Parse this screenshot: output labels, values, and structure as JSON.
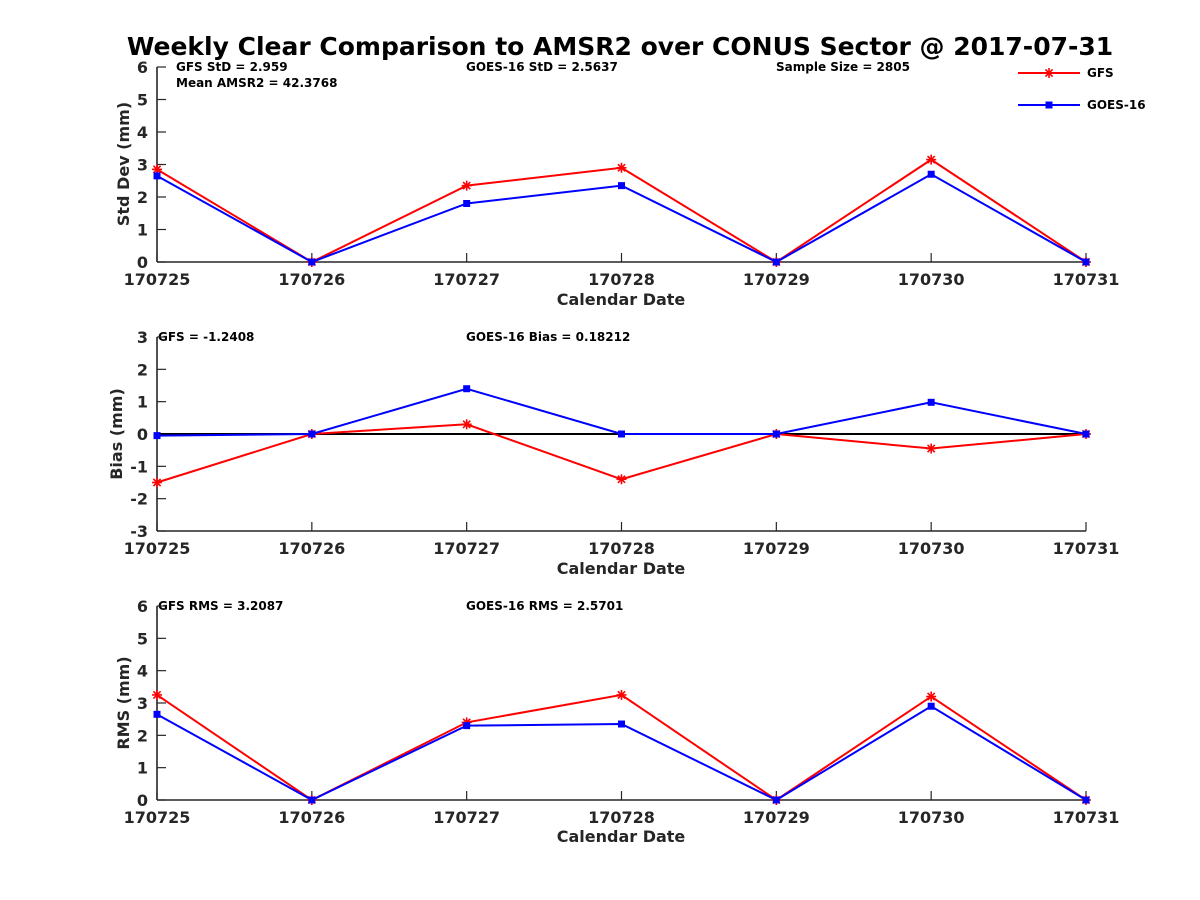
{
  "figure_title": "Weekly Clear Comparison to AMSR2 over CONUS Sector @ 2017-07-31",
  "colors": {
    "GFS": "#ff0000",
    "GOES-16": "#0000ff",
    "axis": "#262626",
    "zero_line": "#000000"
  },
  "legend": [
    "GFS",
    "GOES-16"
  ],
  "chart_data": [
    {
      "type": "line",
      "categories": [
        "170725",
        "170726",
        "170727",
        "170728",
        "170729",
        "170730",
        "170731"
      ],
      "xlabel": "Calendar Date",
      "ylabel": "Std Dev (mm)",
      "ylim": [
        0,
        6
      ],
      "yticks": [
        0,
        1,
        2,
        3,
        4,
        5,
        6
      ],
      "zero_line": false,
      "series": [
        {
          "name": "GFS",
          "marker": "asterisk",
          "values": [
            2.85,
            0.0,
            2.35,
            2.9,
            0.0,
            3.15,
            0.0
          ]
        },
        {
          "name": "GOES-16",
          "marker": "square",
          "values": [
            2.65,
            0.0,
            1.8,
            2.35,
            0.0,
            2.7,
            0.0
          ]
        }
      ],
      "annotations": [
        "GFS StD = 2.959",
        "Mean AMSR2 = 42.3768",
        "GOES-16 StD = 2.5637",
        "Sample Size = 2805"
      ]
    },
    {
      "type": "line",
      "categories": [
        "170725",
        "170726",
        "170727",
        "170728",
        "170729",
        "170730",
        "170731"
      ],
      "xlabel": "Calendar Date",
      "ylabel": "Bias (mm)",
      "ylim": [
        -3,
        3
      ],
      "yticks": [
        -3,
        -2,
        -1,
        0,
        1,
        2,
        3
      ],
      "zero_line": true,
      "series": [
        {
          "name": "GFS",
          "marker": "asterisk",
          "values": [
            -1.5,
            0.0,
            0.3,
            -1.4,
            0.0,
            -0.45,
            0.0
          ]
        },
        {
          "name": "GOES-16",
          "marker": "square",
          "values": [
            -0.05,
            0.0,
            1.4,
            0.0,
            0.0,
            0.98,
            0.0
          ]
        }
      ],
      "annotations": [
        "GFS = -1.2408",
        "GOES-16 Bias  = 0.18212"
      ]
    },
    {
      "type": "line",
      "categories": [
        "170725",
        "170726",
        "170727",
        "170728",
        "170729",
        "170730",
        "170731"
      ],
      "xlabel": "Calendar Date",
      "ylabel": "RMS (mm)",
      "ylim": [
        0,
        6
      ],
      "yticks": [
        0,
        1,
        2,
        3,
        4,
        5,
        6
      ],
      "zero_line": false,
      "series": [
        {
          "name": "GFS",
          "marker": "asterisk",
          "values": [
            3.25,
            0.0,
            2.4,
            3.25,
            0.0,
            3.2,
            0.0
          ]
        },
        {
          "name": "GOES-16",
          "marker": "square",
          "values": [
            2.65,
            0.0,
            2.3,
            2.35,
            0.0,
            2.9,
            0.0
          ]
        }
      ],
      "annotations": [
        "GFS RMS = 3.2087",
        "GOES-16 RMS = 2.5701"
      ]
    }
  ]
}
